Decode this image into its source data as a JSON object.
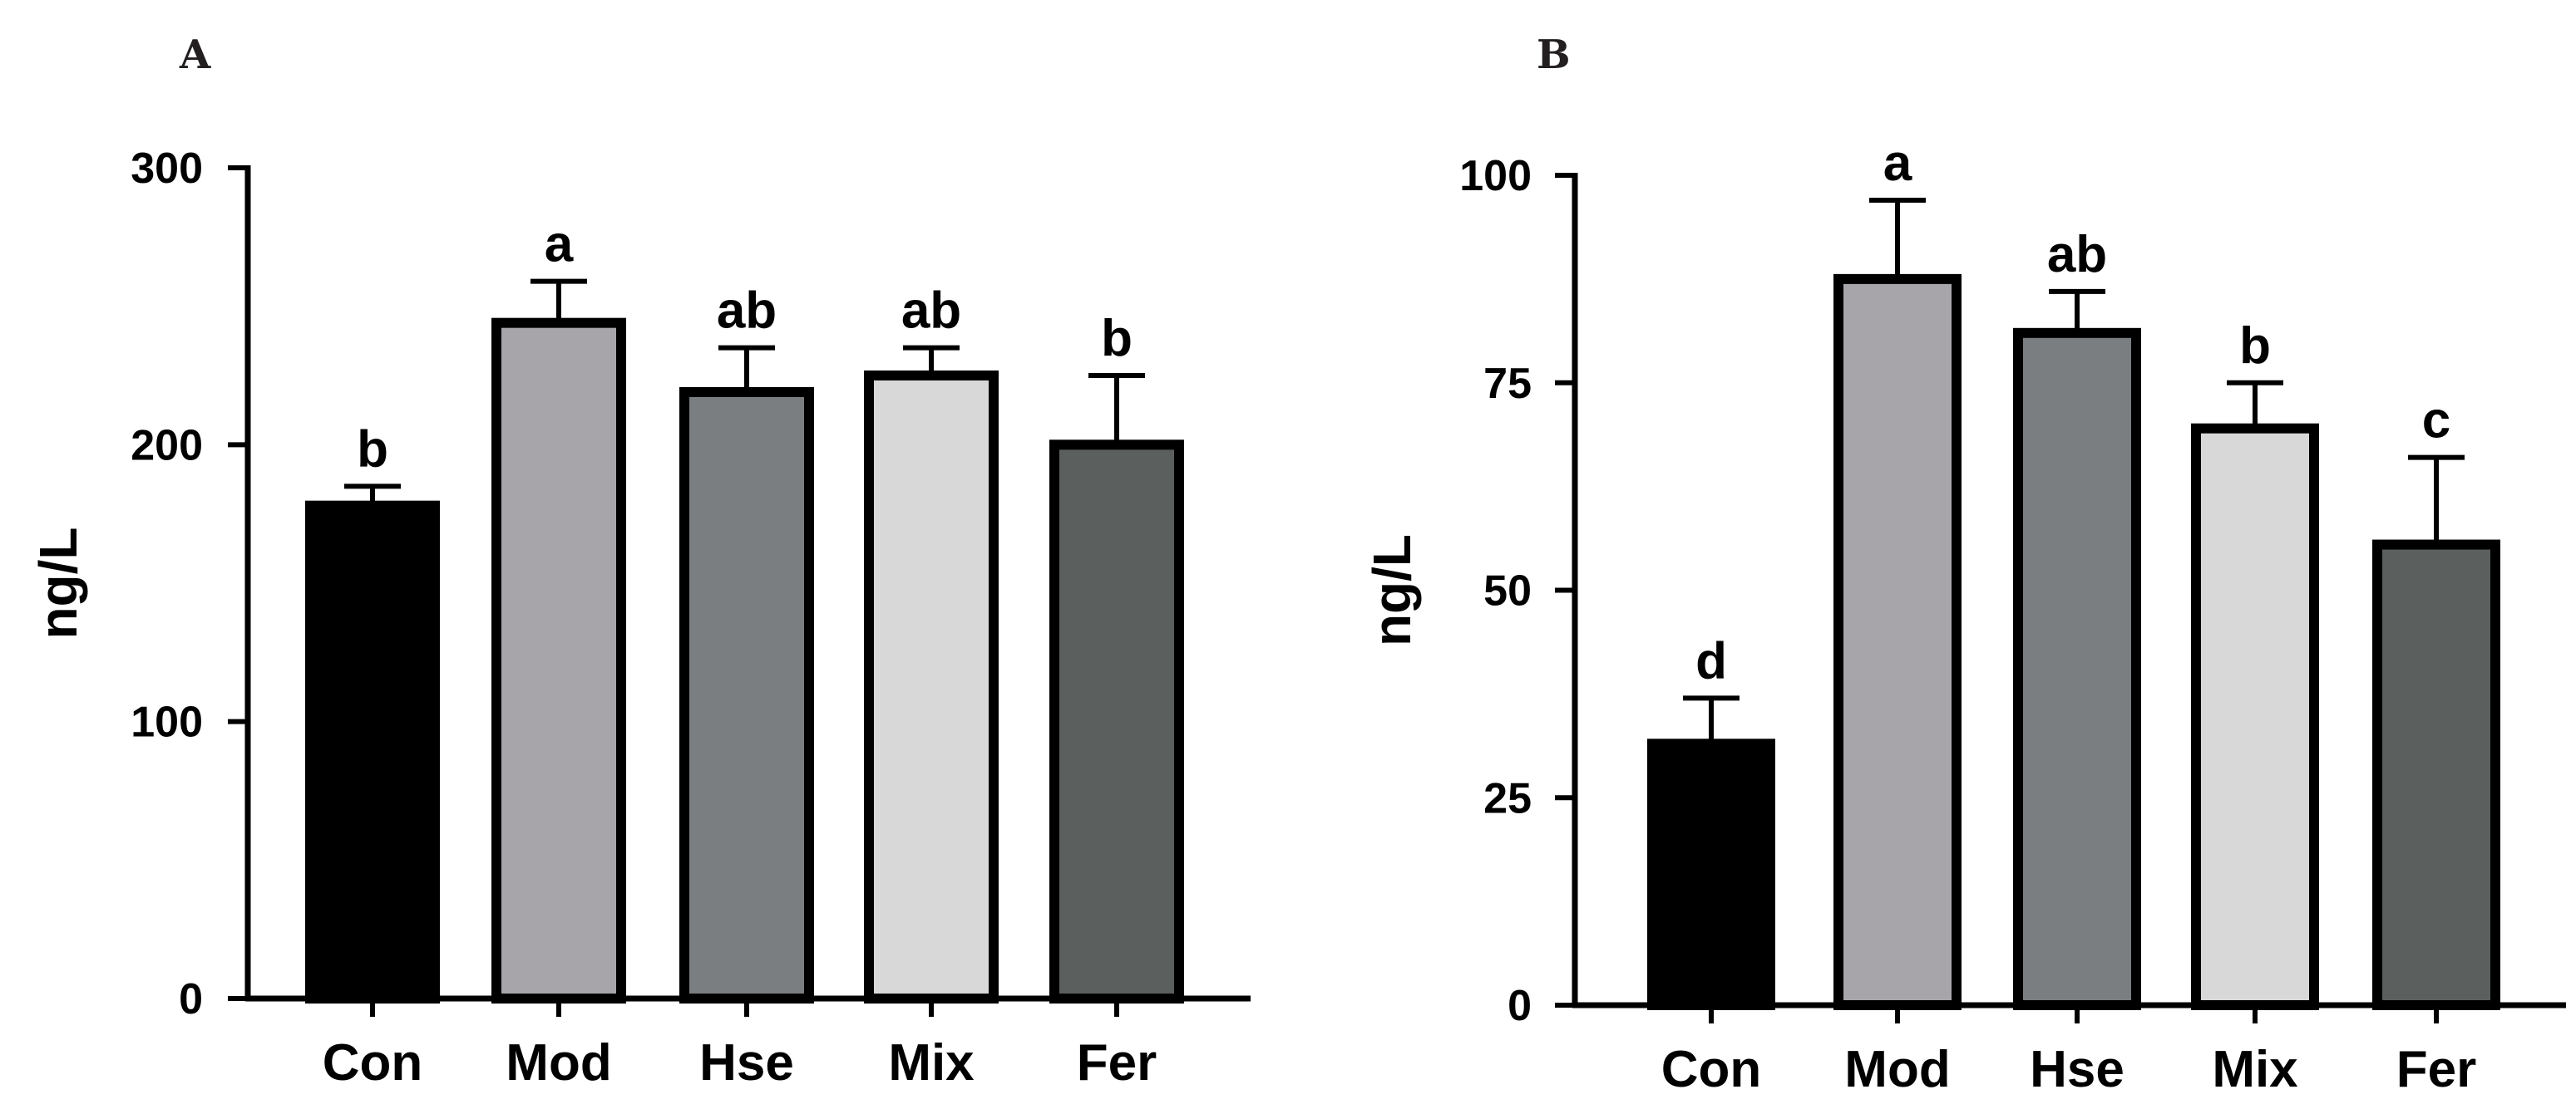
{
  "chart_data": [
    {
      "type": "bar",
      "panel": "A",
      "title": "",
      "xlabel": "",
      "ylabel": "ng/L",
      "ylim": [
        0,
        300
      ],
      "yticks": [
        0,
        100,
        200,
        300
      ],
      "grid": false,
      "categories": [
        "Con",
        "Mod",
        "Hse",
        "Mix",
        "Fer"
      ],
      "values": [
        178,
        244,
        219,
        225,
        200
      ],
      "errors": [
        7,
        15,
        16,
        10,
        25
      ],
      "significance": [
        "b",
        "a",
        "ab",
        "ab",
        "b"
      ],
      "colors": [
        "#000000",
        "#a7a5aa",
        "#7b7e80",
        "#d8d8d8",
        "#5b605e"
      ]
    },
    {
      "type": "bar",
      "panel": "B",
      "title": "",
      "xlabel": "",
      "ylabel": "ng/L",
      "ylim": [
        0,
        100
      ],
      "yticks": [
        0,
        25,
        50,
        75,
        100
      ],
      "grid": false,
      "categories": [
        "Con",
        "Mod",
        "Hse",
        "Mix",
        "Fer"
      ],
      "values": [
        31.5,
        87.5,
        81,
        69.5,
        55.5
      ],
      "errors": [
        5.5,
        9.5,
        5,
        5.5,
        10.5
      ],
      "significance": [
        "d",
        "a",
        "ab",
        "b",
        "c"
      ],
      "colors": [
        "#000000",
        "#a7a5aa",
        "#7b7e80",
        "#d8d8d8",
        "#5b605e"
      ]
    }
  ]
}
